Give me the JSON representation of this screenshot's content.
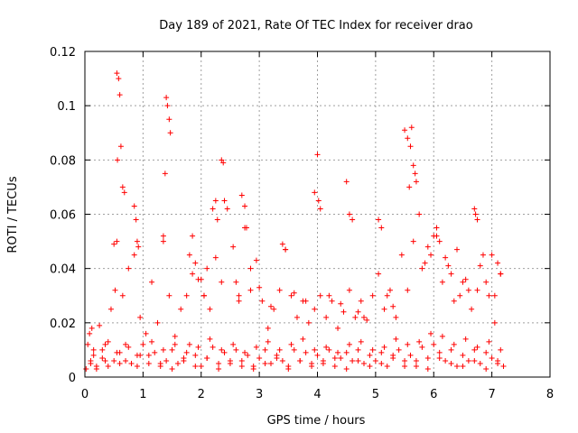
{
  "chart_data": {
    "type": "scatter",
    "title": "Day 189 of 2021, Rate Of TEC Index for receiver drao",
    "xlabel": "GPS time / hours",
    "ylabel": "ROTI / TECUs",
    "xlim": [
      0,
      8
    ],
    "ylim": [
      0,
      0.12
    ],
    "x_ticks": [
      0,
      1,
      2,
      3,
      4,
      5,
      6,
      7,
      8
    ],
    "x_tick_labels": [
      "0",
      "1",
      "2",
      "3",
      "4",
      "5",
      "6",
      "7",
      "8"
    ],
    "y_ticks": [
      0,
      0.02,
      0.04,
      0.06,
      0.08,
      0.1,
      0.12
    ],
    "y_tick_labels": [
      "0",
      "0.02",
      "0.04",
      "0.06",
      "0.08",
      "0.1",
      "0.12"
    ],
    "grid": true,
    "marker": "+",
    "color": "#ff0000",
    "series": [
      {
        "name": "ROTI",
        "x": [
          0.02,
          0.05,
          0.08,
          0.1,
          0.12,
          0.15,
          0.2,
          0.25,
          0.3,
          0.35,
          0.4,
          0.45,
          0.5,
          0.55,
          0.6,
          0.65,
          0.7,
          0.75,
          0.8,
          0.85,
          0.9,
          0.95,
          1.0,
          1.05,
          1.1,
          1.15,
          1.2,
          1.25,
          1.3,
          1.35,
          1.4,
          1.45,
          1.5,
          1.55,
          1.6,
          1.65,
          1.7,
          1.75,
          1.8,
          1.85,
          1.9,
          1.95,
          2.0,
          2.05,
          2.1,
          2.15,
          2.2,
          2.25,
          2.3,
          2.35,
          2.4,
          2.45,
          2.5,
          2.55,
          2.6,
          2.65,
          2.7,
          2.75,
          2.8,
          2.85,
          2.9,
          2.95,
          3.0,
          3.05,
          3.1,
          3.15,
          3.2,
          3.25,
          3.3,
          3.35,
          3.4,
          3.45,
          3.5,
          3.55,
          3.6,
          3.65,
          3.7,
          3.75,
          3.8,
          3.85,
          3.9,
          3.95,
          4.0,
          4.05,
          4.1,
          4.15,
          4.2,
          4.25,
          4.3,
          4.35,
          4.4,
          4.45,
          4.5,
          4.55,
          4.6,
          4.65,
          4.7,
          4.75,
          4.8,
          4.85,
          4.9,
          4.95,
          5.0,
          5.05,
          5.1,
          5.15,
          5.2,
          5.25,
          5.3,
          5.35,
          5.4,
          5.45,
          5.5,
          5.55,
          5.6,
          5.65,
          5.7,
          5.75,
          5.8,
          5.85,
          5.9,
          5.95,
          6.0,
          6.05,
          6.1,
          6.15,
          6.2,
          6.25,
          6.3,
          6.35,
          6.4,
          6.45,
          6.5,
          6.55,
          6.6,
          6.65,
          6.7,
          6.75,
          6.8,
          6.85,
          6.9,
          6.95,
          7.0,
          7.05,
          7.1,
          7.15,
          7.2,
          0.55,
          0.58,
          0.6,
          0.62,
          0.65,
          0.68,
          0.5,
          0.52,
          0.56,
          0.85,
          0.88,
          0.9,
          0.92,
          1.4,
          1.42,
          1.45,
          1.38,
          1.47,
          1.35,
          2.35,
          2.38,
          2.4,
          2.2,
          2.25,
          2.28,
          2.7,
          2.75,
          2.78,
          3.4,
          3.45,
          3.95,
          4.0,
          4.02,
          4.05,
          4.5,
          4.55,
          4.6,
          5.05,
          5.1,
          5.5,
          5.55,
          5.6,
          5.62,
          5.65,
          5.68,
          5.7,
          5.58,
          6.05,
          6.1,
          6.7,
          6.72,
          6.75,
          7.0,
          7.1,
          7.15,
          0.1,
          0.2,
          0.3,
          0.4,
          0.6,
          0.7,
          0.9,
          1.1,
          1.3,
          1.5,
          1.7,
          1.9,
          2.1,
          2.3,
          2.5,
          2.7,
          2.9,
          3.1,
          3.3,
          3.5,
          3.7,
          3.9,
          4.1,
          4.3,
          4.5,
          4.7,
          4.9,
          5.1,
          5.3,
          5.5,
          5.7,
          5.9,
          6.1,
          6.3,
          6.5,
          6.7,
          6.9,
          7.1,
          0.15,
          0.35,
          0.55,
          0.75,
          0.95,
          1.15,
          1.35,
          1.55,
          1.75,
          1.95,
          2.15,
          2.35,
          2.55,
          2.75,
          2.95,
          3.15,
          3.35,
          3.55,
          3.75,
          3.95,
          4.15,
          4.35,
          4.55,
          4.75,
          4.95,
          5.15,
          5.35,
          5.55,
          5.75,
          5.95,
          6.15,
          6.35,
          6.55,
          6.75,
          6.95,
          7.15,
          1.8,
          1.85,
          1.9,
          2.0,
          2.05,
          2.1,
          2.6,
          2.65,
          2.85,
          3.0,
          3.2,
          3.6,
          3.8,
          4.2,
          4.4,
          4.7,
          4.8,
          5.2,
          5.3,
          5.8,
          5.9,
          6.0,
          6.2,
          6.3,
          6.4,
          6.5,
          6.6,
          6.8,
          6.9,
          7.05
        ],
        "y": [
          0.003,
          0.012,
          0.016,
          0.006,
          0.018,
          0.008,
          0.004,
          0.019,
          0.01,
          0.006,
          0.013,
          0.025,
          0.006,
          0.05,
          0.009,
          0.03,
          0.012,
          0.04,
          0.005,
          0.045,
          0.008,
          0.022,
          0.012,
          0.016,
          0.005,
          0.035,
          0.009,
          0.02,
          0.004,
          0.05,
          0.006,
          0.03,
          0.01,
          0.015,
          0.005,
          0.025,
          0.007,
          0.03,
          0.012,
          0.052,
          0.008,
          0.036,
          0.004,
          0.03,
          0.007,
          0.025,
          0.011,
          0.044,
          0.005,
          0.035,
          0.009,
          0.062,
          0.006,
          0.048,
          0.01,
          0.03,
          0.004,
          0.055,
          0.008,
          0.032,
          0.003,
          0.043,
          0.007,
          0.028,
          0.01,
          0.018,
          0.005,
          0.025,
          0.008,
          0.032,
          0.006,
          0.047,
          0.004,
          0.03,
          0.01,
          0.022,
          0.006,
          0.028,
          0.009,
          0.02,
          0.005,
          0.025,
          0.008,
          0.03,
          0.006,
          0.022,
          0.01,
          0.028,
          0.004,
          0.018,
          0.007,
          0.024,
          0.009,
          0.032,
          0.006,
          0.022,
          0.01,
          0.028,
          0.005,
          0.021,
          0.008,
          0.03,
          0.006,
          0.038,
          0.009,
          0.025,
          0.004,
          0.032,
          0.007,
          0.022,
          0.01,
          0.045,
          0.006,
          0.032,
          0.008,
          0.05,
          0.004,
          0.06,
          0.011,
          0.042,
          0.007,
          0.045,
          0.012,
          0.052,
          0.009,
          0.035,
          0.006,
          0.041,
          0.01,
          0.028,
          0.004,
          0.03,
          0.008,
          0.036,
          0.006,
          0.025,
          0.01,
          0.032,
          0.005,
          0.045,
          0.009,
          0.03,
          0.007,
          0.02,
          0.006,
          0.038,
          0.004,
          0.112,
          0.11,
          0.104,
          0.085,
          0.07,
          0.068,
          0.049,
          0.032,
          0.08,
          0.063,
          0.058,
          0.05,
          0.048,
          0.103,
          0.1,
          0.095,
          0.075,
          0.09,
          0.052,
          0.08,
          0.079,
          0.065,
          0.062,
          0.065,
          0.058,
          0.067,
          0.063,
          0.055,
          0.049,
          0.047,
          0.068,
          0.082,
          0.065,
          0.062,
          0.072,
          0.06,
          0.058,
          0.058,
          0.055,
          0.091,
          0.088,
          0.085,
          0.092,
          0.078,
          0.075,
          0.072,
          0.07,
          0.055,
          0.05,
          0.062,
          0.06,
          0.058,
          0.045,
          0.042,
          0.038,
          0.005,
          0.003,
          0.007,
          0.004,
          0.005,
          0.006,
          0.004,
          0.008,
          0.005,
          0.003,
          0.006,
          0.004,
          0.007,
          0.003,
          0.005,
          0.006,
          0.004,
          0.005,
          0.007,
          0.003,
          0.006,
          0.004,
          0.005,
          0.007,
          0.003,
          0.006,
          0.004,
          0.005,
          0.008,
          0.004,
          0.006,
          0.003,
          0.007,
          0.005,
          0.004,
          0.006,
          0.003,
          0.005,
          0.01,
          0.012,
          0.009,
          0.011,
          0.008,
          0.013,
          0.01,
          0.012,
          0.009,
          0.011,
          0.014,
          0.01,
          0.012,
          0.009,
          0.011,
          0.013,
          0.01,
          0.012,
          0.014,
          0.01,
          0.011,
          0.009,
          0.012,
          0.013,
          0.01,
          0.011,
          0.014,
          0.012,
          0.013,
          0.016,
          0.015,
          0.012,
          0.014,
          0.011,
          0.013,
          0.01,
          0.045,
          0.038,
          0.042,
          0.036,
          0.03,
          0.04,
          0.035,
          0.028,
          0.04,
          0.033,
          0.026,
          0.031,
          0.028,
          0.03,
          0.027,
          0.024,
          0.022,
          0.03,
          0.026,
          0.04,
          0.048,
          0.052,
          0.044,
          0.038,
          0.047,
          0.035,
          0.032,
          0.041,
          0.035,
          0.03
        ]
      }
    ]
  }
}
